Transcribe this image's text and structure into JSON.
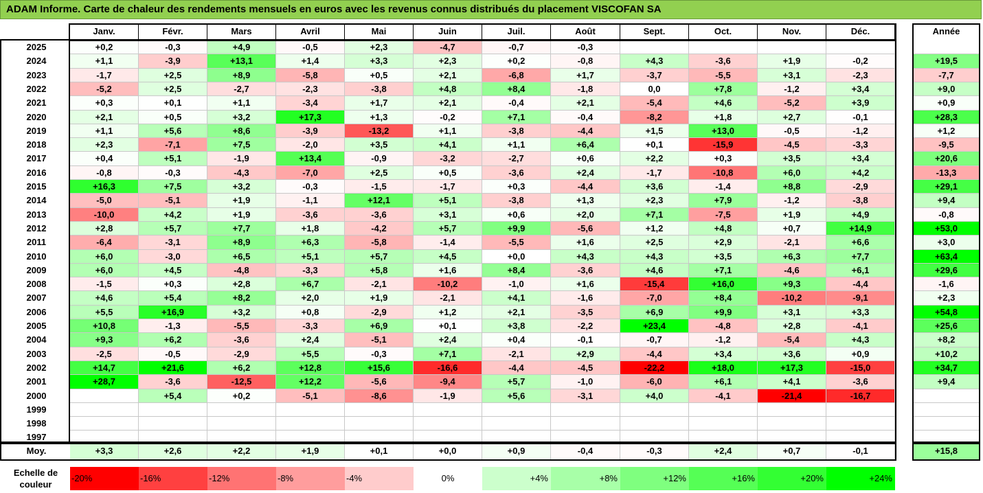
{
  "title": "ADAM Informe. Carte de chaleur des rendements mensuels en euros avec les revenus connus distribués du placement VISCOFAN SA",
  "chart_data": {
    "type": "heatmap",
    "title": "ADAM Informe. Carte de chaleur des rendements mensuels en euros avec les revenus connus distribués du placement VISCOFAN SA",
    "columns": [
      "Janv.",
      "Févr.",
      "Mars",
      "Avril",
      "Mai",
      "Juin",
      "Juil.",
      "Août",
      "Sept.",
      "Oct.",
      "Nov.",
      "Déc."
    ],
    "year_column_label": "Année",
    "rows": [
      {
        "year": "2025",
        "values": [
          "+0,2",
          "-0,3",
          "+4,9",
          "-0,5",
          "+2,3",
          "-4,7",
          "-0,7",
          "-0,3",
          "",
          "",
          "",
          ""
        ],
        "annual": ""
      },
      {
        "year": "2024",
        "values": [
          "+1,1",
          "-3,9",
          "+13,1",
          "+1,4",
          "+3,3",
          "+2,3",
          "+0,2",
          "-0,8",
          "+4,3",
          "-3,6",
          "+1,9",
          "-0,2"
        ],
        "annual": "+19,5"
      },
      {
        "year": "2023",
        "values": [
          "-1,7",
          "+2,5",
          "+8,9",
          "-5,8",
          "+0,5",
          "+2,1",
          "-6,8",
          "+1,7",
          "-3,7",
          "-5,5",
          "+3,1",
          "-2,3"
        ],
        "annual": "-7,7"
      },
      {
        "year": "2022",
        "values": [
          "-5,2",
          "+2,5",
          "-2,7",
          "-2,3",
          "-3,8",
          "+4,8",
          "+8,4",
          "-1,8",
          "0,0",
          "+7,8",
          "-1,2",
          "+3,4"
        ],
        "annual": "+9,0"
      },
      {
        "year": "2021",
        "values": [
          "+0,3",
          "+0,1",
          "+1,1",
          "-3,4",
          "+1,7",
          "+2,1",
          "-0,4",
          "+2,1",
          "-5,4",
          "+4,6",
          "-5,2",
          "+3,9"
        ],
        "annual": "+0,9"
      },
      {
        "year": "2020",
        "values": [
          "+2,1",
          "+0,5",
          "+3,2",
          "+17,3",
          "+1,3",
          "-0,2",
          "+7,1",
          "-0,4",
          "-8,2",
          "+1,8",
          "+2,7",
          "-0,1"
        ],
        "annual": "+28,3"
      },
      {
        "year": "2019",
        "values": [
          "+1,1",
          "+5,6",
          "+8,6",
          "-3,9",
          "-13,2",
          "+1,1",
          "-3,8",
          "-4,4",
          "+1,5",
          "+13,0",
          "-0,5",
          "-1,2"
        ],
        "annual": "+1,2"
      },
      {
        "year": "2018",
        "values": [
          "+2,3",
          "-7,1",
          "+7,5",
          "-2,0",
          "+3,5",
          "+4,1",
          "+1,1",
          "+6,4",
          "+0,1",
          "-15,9",
          "-4,5",
          "-3,3"
        ],
        "annual": "-9,5"
      },
      {
        "year": "2017",
        "values": [
          "+0,4",
          "+5,1",
          "-1,9",
          "+13,4",
          "-0,9",
          "-3,2",
          "-2,7",
          "+0,6",
          "+2,2",
          "+0,3",
          "+3,5",
          "+3,4"
        ],
        "annual": "+20,6"
      },
      {
        "year": "2016",
        "values": [
          "-0,8",
          "-0,3",
          "-4,3",
          "-7,0",
          "+2,5",
          "+0,5",
          "-3,6",
          "+2,4",
          "-1,7",
          "-10,8",
          "+6,0",
          "+4,2"
        ],
        "annual": "-13,3"
      },
      {
        "year": "2015",
        "values": [
          "+16,3",
          "+7,5",
          "+3,2",
          "-0,3",
          "-1,5",
          "-1,7",
          "+0,3",
          "-4,4",
          "+3,6",
          "-1,4",
          "+8,8",
          "-2,9"
        ],
        "annual": "+29,1"
      },
      {
        "year": "2014",
        "values": [
          "-5,0",
          "-5,1",
          "+1,9",
          "-1,1",
          "+12,1",
          "+5,1",
          "-3,8",
          "+1,3",
          "+2,3",
          "+7,9",
          "-1,2",
          "-3,8"
        ],
        "annual": "+9,4"
      },
      {
        "year": "2013",
        "values": [
          "-10,0",
          "+4,2",
          "+1,9",
          "-3,6",
          "-3,6",
          "+3,1",
          "+0,6",
          "+2,0",
          "+7,1",
          "-7,5",
          "+1,9",
          "+4,9"
        ],
        "annual": "-0,8"
      },
      {
        "year": "2012",
        "values": [
          "+2,8",
          "+5,7",
          "+7,7",
          "+1,8",
          "-4,2",
          "+5,7",
          "+9,9",
          "-5,6",
          "+1,2",
          "+4,8",
          "+0,7",
          "+14,9"
        ],
        "annual": "+53,0"
      },
      {
        "year": "2011",
        "values": [
          "-6,4",
          "-3,1",
          "+8,9",
          "+6,3",
          "-5,8",
          "-1,4",
          "-5,5",
          "+1,6",
          "+2,5",
          "+2,9",
          "-2,1",
          "+6,6"
        ],
        "annual": "+3,0"
      },
      {
        "year": "2010",
        "values": [
          "+6,0",
          "-3,0",
          "+6,5",
          "+5,1",
          "+5,7",
          "+4,5",
          "+0,0",
          "+4,3",
          "+4,3",
          "+3,5",
          "+6,3",
          "+7,7"
        ],
        "annual": "+63,4"
      },
      {
        "year": "2009",
        "values": [
          "+6,0",
          "+4,5",
          "-4,8",
          "-3,3",
          "+5,8",
          "+1,6",
          "+8,4",
          "-3,6",
          "+4,6",
          "+7,1",
          "-4,6",
          "+6,1"
        ],
        "annual": "+29,6"
      },
      {
        "year": "2008",
        "values": [
          "-1,5",
          "+0,3",
          "+2,8",
          "+6,7",
          "-2,1",
          "-10,2",
          "-1,0",
          "+1,6",
          "-15,4",
          "+16,0",
          "+9,3",
          "-4,4"
        ],
        "annual": "-1,6"
      },
      {
        "year": "2007",
        "values": [
          "+4,6",
          "+5,4",
          "+8,2",
          "+2,0",
          "+1,9",
          "-2,1",
          "+4,1",
          "-1,6",
          "-7,0",
          "+8,4",
          "-10,2",
          "-9,1"
        ],
        "annual": "+2,3"
      },
      {
        "year": "2006",
        "values": [
          "+5,5",
          "+16,9",
          "+3,2",
          "+0,8",
          "-2,9",
          "+1,2",
          "+2,1",
          "-3,5",
          "+6,9",
          "+9,9",
          "+3,1",
          "+3,3"
        ],
        "annual": "+54,8"
      },
      {
        "year": "2005",
        "values": [
          "+10,8",
          "-1,3",
          "-5,5",
          "-3,3",
          "+6,9",
          "+0,1",
          "+3,8",
          "-2,2",
          "+23,4",
          "-4,8",
          "+2,8",
          "-4,1"
        ],
        "annual": "+25,6"
      },
      {
        "year": "2004",
        "values": [
          "+9,3",
          "+6,2",
          "-3,6",
          "+2,4",
          "-5,1",
          "+2,4",
          "+0,4",
          "-0,1",
          "-0,7",
          "-1,2",
          "-5,4",
          "+4,3"
        ],
        "annual": "+8,2"
      },
      {
        "year": "2003",
        "values": [
          "-2,5",
          "-0,5",
          "-2,9",
          "+5,5",
          "-0,3",
          "+7,1",
          "-2,1",
          "+2,9",
          "-4,4",
          "+3,4",
          "+3,6",
          "+0,9"
        ],
        "annual": "+10,2"
      },
      {
        "year": "2002",
        "values": [
          "+14,7",
          "+21,6",
          "+6,2",
          "+12,8",
          "+15,6",
          "-16,6",
          "-4,4",
          "-4,5",
          "-22,2",
          "+18,0",
          "+17,3",
          "-15,0"
        ],
        "annual": "+34,7"
      },
      {
        "year": "2001",
        "values": [
          "+28,7",
          "-3,6",
          "-12,5",
          "+12,2",
          "-5,6",
          "-9,4",
          "+5,7",
          "-1,0",
          "-6,0",
          "+6,1",
          "+4,1",
          "-3,6"
        ],
        "annual": "+9,4"
      },
      {
        "year": "2000",
        "values": [
          "",
          "+5,4",
          "+0,2",
          "-5,1",
          "-8,6",
          "-1,9",
          "+5,6",
          "-3,1",
          "+4,0",
          "-4,1",
          "-21,4",
          "-16,7"
        ],
        "annual": ""
      },
      {
        "year": "1999",
        "values": [
          "",
          "",
          "",
          "",
          "",
          "",
          "",
          "",
          "",
          "",
          "",
          ""
        ],
        "annual": ""
      },
      {
        "year": "1998",
        "values": [
          "",
          "",
          "",
          "",
          "",
          "",
          "",
          "",
          "",
          "",
          "",
          ""
        ],
        "annual": ""
      },
      {
        "year": "1997",
        "values": [
          "",
          "",
          "",
          "",
          "",
          "",
          "",
          "",
          "",
          "",
          "",
          ""
        ],
        "annual": ""
      }
    ],
    "average": {
      "label": "Moy.",
      "values": [
        "+3,3",
        "+2,6",
        "+2,2",
        "+1,9",
        "+0,1",
        "+0,0",
        "+0,9",
        "-0,4",
        "-0,3",
        "+2,4",
        "+0,7",
        "-0,1"
      ],
      "annual": "+15,8"
    },
    "color_scale": {
      "label": "Echelle de couleur",
      "steps": [
        "-20%",
        "-16%",
        "-12%",
        "-8%",
        "-4%",
        "0%",
        "+4%",
        "+8%",
        "+12%",
        "+16%",
        "+20%",
        "+24%"
      ],
      "colors": [
        "#ff0000",
        "#ff4040",
        "#ff7373",
        "#ff9d9d",
        "#ffcccc",
        "#ffffff",
        "#ccffcc",
        "#a8ffa8",
        "#7fff7f",
        "#55ff55",
        "#33ff33",
        "#00ff00"
      ]
    }
  }
}
